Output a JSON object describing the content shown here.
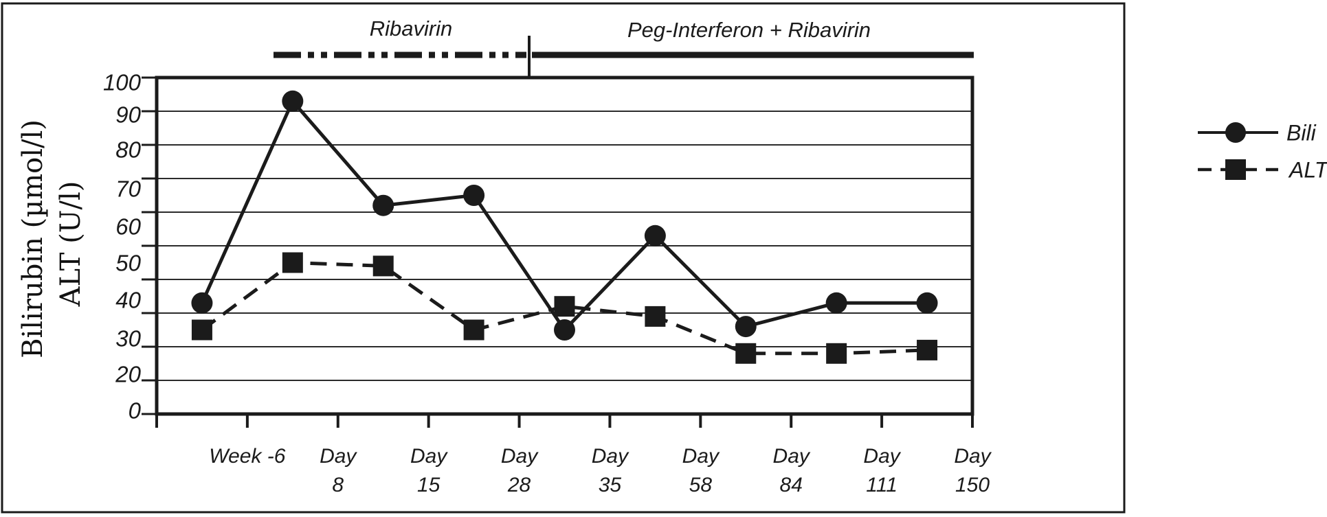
{
  "figure": {
    "y_axis_title_line1": "Bilirubin (µmol/l)",
    "y_axis_title_line2": "ALT (U/l)",
    "annotations": [
      {
        "label": "Ribavirin",
        "line_style": "dash-dot"
      },
      {
        "label": "Peg-Interferon + Ribavirin",
        "line_style": "solid"
      }
    ],
    "legend": [
      {
        "label": "Bili",
        "marker": "circle",
        "line_style": "solid"
      },
      {
        "label": "ALT",
        "marker": "square",
        "line_style": "dashed"
      }
    ],
    "ink_color": "#1b1b1b",
    "background_color": "#ffffff"
  },
  "chart_data": {
    "type": "line",
    "title": "",
    "categories": [
      "Week -6",
      "Day 8",
      "Day 15",
      "Day 28",
      "Day 35",
      "Day 58",
      "Day 84",
      "Day 111",
      "Day 150"
    ],
    "x_tick_label_lines": [
      [
        "Week -6"
      ],
      [
        "Day",
        "8"
      ],
      [
        "Day",
        "15"
      ],
      [
        "Day",
        "28"
      ],
      [
        "Day",
        "35"
      ],
      [
        "Day",
        "58"
      ],
      [
        "Day",
        "84"
      ],
      [
        "Day",
        "111"
      ],
      [
        "Day",
        "150"
      ]
    ],
    "series": [
      {
        "name": "Bili",
        "marker": "circle",
        "line_style": "solid",
        "values": [
          33,
          93,
          62,
          65,
          25,
          53,
          26,
          33,
          33
        ]
      },
      {
        "name": "ALT",
        "marker": "square",
        "line_style": "dashed",
        "values": [
          25,
          45,
          44,
          25,
          32,
          29,
          18,
          18,
          19
        ]
      }
    ],
    "ylabel_line1": "Bilirubin (µmol/l)",
    "ylabel_line2": "ALT (U/l)",
    "ylim": [
      0,
      100
    ],
    "y_gridline_step": 10,
    "y_tick_labels": [
      "100",
      "90",
      "80",
      "70",
      "60",
      "50",
      "40",
      "30",
      "20",
      "0"
    ],
    "grid": "horizontal",
    "legend_position": "outside-right",
    "x_labels_centered_on_boundaries": true,
    "treatment_phases": [
      {
        "label": "Ribavirin",
        "span": "before Day 28",
        "line_style": "dash-dot"
      },
      {
        "label": "Peg-Interferon + Ribavirin",
        "span": "Day 28 onward",
        "line_style": "solid"
      }
    ]
  }
}
